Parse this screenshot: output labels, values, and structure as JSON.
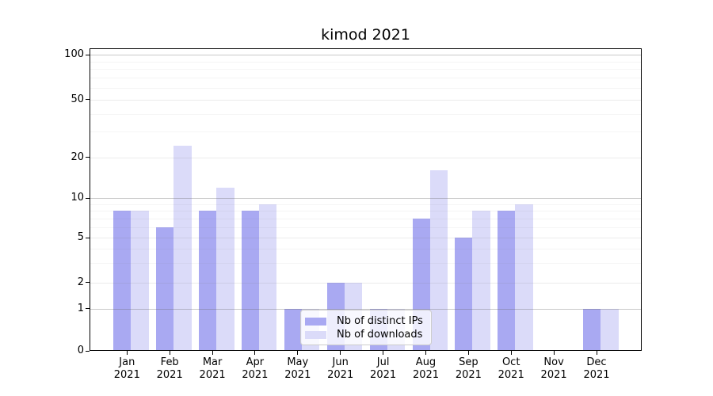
{
  "title": "kimod 2021",
  "colors": {
    "bar_ips": "#a9a9f2",
    "bar_downloads": "#dbdbf9",
    "grid_decade": "rgba(100,100,100,0.35)",
    "grid_major": "rgba(128,128,128,0.16)",
    "grid_minor": "rgba(128,128,128,0.08)",
    "axis": "#000000",
    "legend_border": "#cccccc"
  },
  "legend": {
    "items": [
      {
        "label": "Nb of distinct IPs",
        "color_key": "bar_ips"
      },
      {
        "label": "Nb of downloads",
        "color_key": "bar_downloads"
      }
    ]
  },
  "chart_data": {
    "type": "bar",
    "title": "kimod 2021",
    "months": [
      "Jan",
      "Feb",
      "Mar",
      "Apr",
      "May",
      "Jun",
      "Jul",
      "Aug",
      "Sep",
      "Oct",
      "Nov",
      "Dec"
    ],
    "year": "2021",
    "categories": [
      "Jan 2021",
      "Feb 2021",
      "Mar 2021",
      "Apr 2021",
      "May 2021",
      "Jun 2021",
      "Jul 2021",
      "Aug 2021",
      "Sep 2021",
      "Oct 2021",
      "Nov 2021",
      "Dec 2021"
    ],
    "series": [
      {
        "name": "Nb of distinct IPs",
        "values": [
          8,
          6,
          8,
          8,
          1,
          2,
          1,
          7,
          5,
          8,
          0,
          1
        ]
      },
      {
        "name": "Nb of downloads",
        "values": [
          8,
          24,
          12,
          9,
          1,
          2,
          1,
          16,
          8,
          9,
          0,
          1
        ]
      }
    ],
    "xlabel": "",
    "ylabel": "",
    "yscale": "log-like (0,1 linear then logarithmic)",
    "y_ticks": [
      0,
      1,
      2,
      5,
      10,
      20,
      50,
      100
    ],
    "y_minor_ticks": [
      3,
      4,
      6,
      7,
      8,
      9,
      30,
      40,
      60,
      70,
      80,
      90
    ],
    "ylim": [
      0,
      110
    ],
    "grid": "on",
    "legend_position": "lower center, inside plot"
  }
}
